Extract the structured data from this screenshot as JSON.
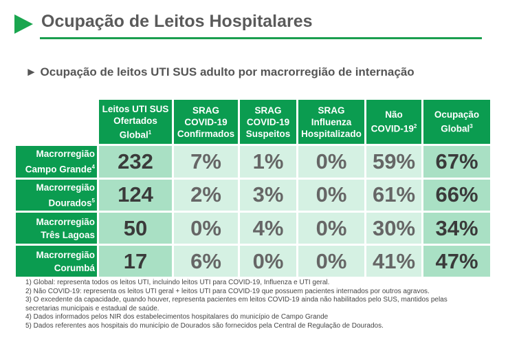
{
  "header": {
    "title": "Ocupação de Leitos Hospitalares",
    "subtitle": "► Ocupação de leitos UTI SUS adulto por macrorregião de internação",
    "accent_color": "#1aa64f"
  },
  "table": {
    "columns": [
      {
        "lines": [
          "Leitos UTI SUS",
          "Ofertados",
          "Global"
        ],
        "sup": "1"
      },
      {
        "lines": [
          "SRAG",
          "COVID-19",
          "Confirmados"
        ],
        "sup": ""
      },
      {
        "lines": [
          "SRAG",
          "COVID-19",
          "Suspeitos"
        ],
        "sup": ""
      },
      {
        "lines": [
          "SRAG",
          "Influenza",
          "Hospitalizado"
        ],
        "sup": ""
      },
      {
        "lines": [
          "Não",
          "COVID-19"
        ],
        "sup": "2"
      },
      {
        "lines": [
          "Ocupação",
          "Global"
        ],
        "sup": "3"
      }
    ],
    "rows": [
      {
        "label1": "Macrorregião",
        "label2": "Campo Grande",
        "sup": "4",
        "values": [
          "232",
          "7%",
          "1%",
          "0%",
          "59%",
          "67%"
        ]
      },
      {
        "label1": "Macrorregião",
        "label2": "Dourados",
        "sup": "5",
        "values": [
          "124",
          "2%",
          "3%",
          "0%",
          "61%",
          "66%"
        ]
      },
      {
        "label1": "Macrorregião",
        "label2": "Três Lagoas",
        "sup": "",
        "values": [
          "50",
          "0%",
          "4%",
          "0%",
          "30%",
          "34%"
        ]
      },
      {
        "label1": "Macrorregião",
        "label2": "Corumbá",
        "sup": "",
        "values": [
          "17",
          "6%",
          "0%",
          "0%",
          "41%",
          "47%"
        ]
      }
    ]
  },
  "footnotes": [
    "1) Global: representa todos os leitos UTI, incluindo leitos UTI para COVID-19, Influenza e UTI geral.",
    "2) Não COVID-19: representa os leitos UTI geral + leitos UTI para COVID-19 que possuem pacientes internados por outros agravos.",
    "3) O excedente da capacidade, quando houver, representa pacientes em leitos COVID-19 ainda não habilitados pelo SUS, mantidos pelas",
    "secretarias municipais e estadual de saúde.",
    "4) Dados informados pelos NIR dos estabelecimentos hospitalares do município de Campo Grande",
    "5) Dados referentes aos hospitais do município de Dourados são fornecidos pela Central de Regulação de Dourados."
  ]
}
